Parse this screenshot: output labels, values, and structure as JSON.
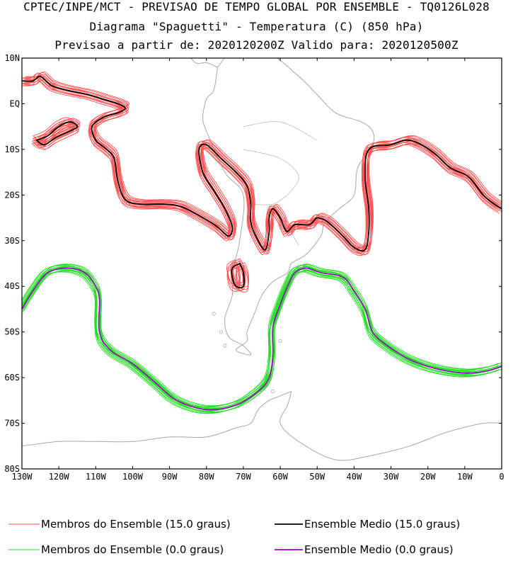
{
  "header": {
    "line1": "CPTEC/INPE/MCT - PREVISAO DE TEMPO GLOBAL POR ENSEMBLE - TQ0126L028",
    "line2": "Diagrama \"Spaguetti\" - Temperatura (C) (850 hPa)",
    "line3": "Previsao a partir de: 2020120200Z  Valido para: 2020120500Z"
  },
  "colors": {
    "members_15": "#ff4d4d",
    "mean_15": "#000000",
    "members_0": "#22dd22",
    "mean_0": "#a000c8",
    "coast": "#a8a8a8",
    "frame": "#000000"
  },
  "chart_data": {
    "type": "line",
    "map_extent": {
      "lon": [
        -130,
        0
      ],
      "lat": [
        -80,
        10
      ]
    },
    "xticks": [
      {
        "value": -130,
        "label": "130W"
      },
      {
        "value": -120,
        "label": "120W"
      },
      {
        "value": -110,
        "label": "110W"
      },
      {
        "value": -100,
        "label": "100W"
      },
      {
        "value": -90,
        "label": "90W"
      },
      {
        "value": -80,
        "label": "80W"
      },
      {
        "value": -70,
        "label": "70W"
      },
      {
        "value": -60,
        "label": "60W"
      },
      {
        "value": -50,
        "label": "50W"
      },
      {
        "value": -40,
        "label": "40W"
      },
      {
        "value": -30,
        "label": "30W"
      },
      {
        "value": -20,
        "label": "20W"
      },
      {
        "value": -10,
        "label": "10W"
      },
      {
        "value": 0,
        "label": "0"
      }
    ],
    "yticks": [
      {
        "value": 10,
        "label": "10N"
      },
      {
        "value": 0,
        "label": "EQ"
      },
      {
        "value": -10,
        "label": "10S"
      },
      {
        "value": -20,
        "label": "20S"
      },
      {
        "value": -30,
        "label": "30S"
      },
      {
        "value": -40,
        "label": "40S"
      },
      {
        "value": -50,
        "label": "50S"
      },
      {
        "value": -60,
        "label": "60S"
      },
      {
        "value": -70,
        "label": "70S"
      },
      {
        "value": -80,
        "label": "80S"
      }
    ],
    "legend": [
      {
        "label": "Membros do Ensemble (15.0 graus)",
        "color": "#ff4d4d"
      },
      {
        "label": "Ensemble Medio (15.0 graus)",
        "color": "#000000"
      },
      {
        "label": "Membros do Ensemble (0.0 graus)",
        "color": "#22dd22"
      },
      {
        "label": "Ensemble Medio (0.0 graus)",
        "color": "#a000c8"
      }
    ],
    "series": [
      {
        "name": "Ensemble Medio (15.0 graus)",
        "contour": 15,
        "lines": [
          [
            [
              -130,
              5
            ],
            [
              -127,
              5
            ],
            [
              -125,
              6
            ],
            [
              -122,
              4
            ],
            [
              -118,
              3
            ],
            [
              -112,
              2
            ],
            [
              -108,
              1
            ],
            [
              -104,
              0
            ],
            [
              -102,
              -1
            ],
            [
              -104,
              -2
            ],
            [
              -108,
              -3
            ],
            [
              -111,
              -5
            ],
            [
              -110,
              -8
            ],
            [
              -107,
              -10
            ],
            [
              -105,
              -12
            ],
            [
              -104,
              -17
            ],
            [
              -102,
              -21
            ],
            [
              -98,
              -22
            ],
            [
              -92,
              -22
            ],
            [
              -87,
              -22.5
            ],
            [
              -81,
              -25
            ],
            [
              -77,
              -27
            ],
            [
              -74,
              -29
            ],
            [
              -73,
              -27
            ],
            [
              -75,
              -23
            ],
            [
              -78,
              -19
            ],
            [
              -81,
              -15
            ],
            [
              -82,
              -10
            ],
            [
              -80,
              -9
            ],
            [
              -76,
              -12
            ],
            [
              -72,
              -15
            ],
            [
              -69,
              -18
            ],
            [
              -68,
              -22
            ],
            [
              -68,
              -26
            ],
            [
              -66,
              -30
            ],
            [
              -64,
              -32
            ],
            [
              -63,
              -28
            ],
            [
              -63,
              -25
            ],
            [
              -62,
              -23
            ],
            [
              -60,
              -25
            ],
            [
              -59,
              -27
            ],
            [
              -58,
              -28
            ],
            [
              -56,
              -26.5
            ],
            [
              -52,
              -26.5
            ],
            [
              -50,
              -25
            ],
            [
              -47,
              -26
            ],
            [
              -43,
              -29
            ],
            [
              -40,
              -31.5
            ],
            [
              -37,
              -32
            ],
            [
              -36,
              -28
            ],
            [
              -36,
              -23
            ],
            [
              -37,
              -16
            ],
            [
              -36,
              -10
            ],
            [
              -30,
              -9
            ],
            [
              -26,
              -8
            ],
            [
              -23,
              -8.5
            ],
            [
              -18,
              -11
            ],
            [
              -14,
              -14
            ],
            [
              -9,
              -16
            ],
            [
              -5,
              -20
            ],
            [
              -2,
              -22
            ],
            [
              0,
              -23
            ]
          ],
          [
            [
              -126,
              -8
            ],
            [
              -123,
              -7
            ],
            [
              -120,
              -5
            ],
            [
              -117,
              -4
            ],
            [
              -115,
              -5
            ],
            [
              -117,
              -6
            ],
            [
              -121,
              -7.5
            ],
            [
              -124,
              -9
            ],
            [
              -126,
              -8
            ]
          ],
          [
            [
              -71,
              -35
            ],
            [
              -70,
              -37
            ],
            [
              -70,
              -40
            ],
            [
              -72,
              -40
            ],
            [
              -73,
              -38
            ],
            [
              -73,
              -36
            ],
            [
              -71,
              -35
            ]
          ]
        ]
      },
      {
        "name": "Ensemble Medio (0.0 graus)",
        "contour": 0,
        "lines": [
          [
            [
              -130,
              -45
            ],
            [
              -127,
              -41
            ],
            [
              -123,
              -37
            ],
            [
              -118,
              -36
            ],
            [
              -113,
              -37
            ],
            [
              -110,
              -40
            ],
            [
              -109,
              -43
            ],
            [
              -109,
              -50
            ],
            [
              -106,
              -54
            ],
            [
              -100,
              -57
            ],
            [
              -94,
              -61
            ],
            [
              -88,
              -65
            ],
            [
              -80,
              -67
            ],
            [
              -72,
              -66
            ],
            [
              -66,
              -63
            ],
            [
              -63,
              -60
            ],
            [
              -62,
              -55
            ],
            [
              -62,
              -49
            ],
            [
              -60,
              -44
            ],
            [
              -58,
              -40
            ],
            [
              -56,
              -37
            ],
            [
              -53,
              -36
            ],
            [
              -49,
              -37
            ],
            [
              -43,
              -38
            ],
            [
              -40,
              -41
            ],
            [
              -37,
              -45
            ],
            [
              -35,
              -50
            ],
            [
              -31,
              -53
            ],
            [
              -25,
              -56
            ],
            [
              -18,
              -58
            ],
            [
              -10,
              -59
            ],
            [
              -4,
              -58.5
            ],
            [
              0,
              -57.5
            ]
          ]
        ]
      }
    ],
    "member_count": 15
  }
}
